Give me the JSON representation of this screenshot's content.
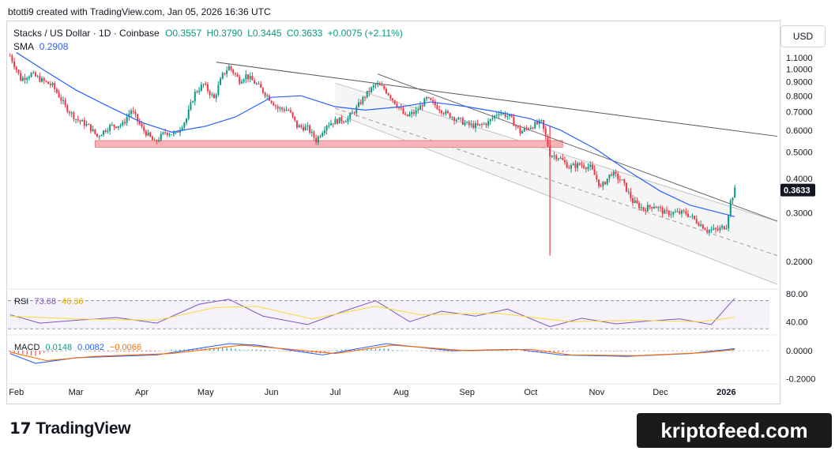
{
  "header": {
    "attribution": "btotti9 created with TradingView.com, Jan 05, 2026 16:36 UTC",
    "symbol": "Stacks / US Dollar · 1D · Coinbase",
    "open": "O0.3557",
    "high": "H0.3790",
    "low": "L0.3445",
    "close": "C0.3633",
    "change": "+0.0075 (+2.11%)",
    "sma_label": "SMA",
    "sma_value": "0.2908",
    "currency": "USD"
  },
  "colors": {
    "up": "#089981",
    "down": "#f23645",
    "sma": "#2962ff",
    "rsi": "#7e57c2",
    "rsi_ma": "#fdd835",
    "macd": "#2962ff",
    "signal": "#ff6d00",
    "support_zone": "#f7b3b8",
    "channel": "#dddddd"
  },
  "chart_data": [
    {
      "type": "candlestick",
      "title": "Stacks / US Dollar · 1D · Coinbase",
      "yscale": "log",
      "ylim": [
        0.165,
        1.2
      ],
      "ytick_labels": [
        "0.2000",
        "0.3000",
        "0.4000",
        "0.5000",
        "0.6000",
        "0.7000",
        "0.8000",
        "0.9000",
        "1.0000",
        "1.1000"
      ],
      "yticks": [
        0.2,
        0.3,
        0.4,
        0.5,
        0.6,
        0.7,
        0.8,
        0.9,
        1.0,
        1.1
      ],
      "xtick_labels": [
        "Feb",
        "Mar",
        "Apr",
        "May",
        "Jun",
        "Jul",
        "Aug",
        "Sep",
        "Oct",
        "Nov",
        "Dec",
        "2026"
      ],
      "xticks": [
        "2025-02-01",
        "2025-03-01",
        "2025-04-01",
        "2025-05-01",
        "2025-06-01",
        "2025-07-01",
        "2025-08-01",
        "2025-09-01",
        "2025-10-01",
        "2025-11-01",
        "2025-12-01",
        "2026-01-01"
      ],
      "xlim": [
        "2025-01-28",
        "2026-01-25"
      ],
      "close_path": [
        {
          "date": "2025-01-29",
          "close": 1.12
        },
        {
          "date": "2025-02-03",
          "close": 0.92
        },
        {
          "date": "2025-02-08",
          "close": 0.96
        },
        {
          "date": "2025-02-13",
          "close": 0.91
        },
        {
          "date": "2025-02-18",
          "close": 0.87
        },
        {
          "date": "2025-02-24",
          "close": 0.73
        },
        {
          "date": "2025-03-01",
          "close": 0.66
        },
        {
          "date": "2025-03-07",
          "close": 0.62
        },
        {
          "date": "2025-03-11",
          "close": 0.57
        },
        {
          "date": "2025-03-17",
          "close": 0.62
        },
        {
          "date": "2025-03-23",
          "close": 0.63
        },
        {
          "date": "2025-03-27",
          "close": 0.71
        },
        {
          "date": "2025-04-01",
          "close": 0.61
        },
        {
          "date": "2025-04-07",
          "close": 0.54
        },
        {
          "date": "2025-04-12",
          "close": 0.59
        },
        {
          "date": "2025-04-17",
          "close": 0.58
        },
        {
          "date": "2025-04-22",
          "close": 0.66
        },
        {
          "date": "2025-04-26",
          "close": 0.82
        },
        {
          "date": "2025-04-30",
          "close": 0.88
        },
        {
          "date": "2025-05-05",
          "close": 0.78
        },
        {
          "date": "2025-05-09",
          "close": 0.95
        },
        {
          "date": "2025-05-12",
          "close": 1.02
        },
        {
          "date": "2025-05-17",
          "close": 0.91
        },
        {
          "date": "2025-05-20",
          "close": 0.95
        },
        {
          "date": "2025-05-25",
          "close": 0.88
        },
        {
          "date": "2025-05-30",
          "close": 0.8
        },
        {
          "date": "2025-06-04",
          "close": 0.72
        },
        {
          "date": "2025-06-09",
          "close": 0.71
        },
        {
          "date": "2025-06-13",
          "close": 0.62
        },
        {
          "date": "2025-06-18",
          "close": 0.61
        },
        {
          "date": "2025-06-22",
          "close": 0.55
        },
        {
          "date": "2025-06-27",
          "close": 0.63
        },
        {
          "date": "2025-07-02",
          "close": 0.65
        },
        {
          "date": "2025-07-07",
          "close": 0.66
        },
        {
          "date": "2025-07-11",
          "close": 0.72
        },
        {
          "date": "2025-07-15",
          "close": 0.8
        },
        {
          "date": "2025-07-20",
          "close": 0.88
        },
        {
          "date": "2025-07-24",
          "close": 0.85
        },
        {
          "date": "2025-07-29",
          "close": 0.76
        },
        {
          "date": "2025-08-03",
          "close": 0.67
        },
        {
          "date": "2025-08-08",
          "close": 0.7
        },
        {
          "date": "2025-08-13",
          "close": 0.78
        },
        {
          "date": "2025-08-17",
          "close": 0.74
        },
        {
          "date": "2025-08-22",
          "close": 0.69
        },
        {
          "date": "2025-08-27",
          "close": 0.66
        },
        {
          "date": "2025-09-01",
          "close": 0.63
        },
        {
          "date": "2025-09-06",
          "close": 0.62
        },
        {
          "date": "2025-09-11",
          "close": 0.64
        },
        {
          "date": "2025-09-16",
          "close": 0.7
        },
        {
          "date": "2025-09-21",
          "close": 0.67
        },
        {
          "date": "2025-09-26",
          "close": 0.59
        },
        {
          "date": "2025-10-01",
          "close": 0.62
        },
        {
          "date": "2025-10-06",
          "close": 0.64
        },
        {
          "date": "2025-10-10",
          "close": 0.49
        },
        {
          "date": "2025-10-14",
          "close": 0.48
        },
        {
          "date": "2025-10-19",
          "close": 0.44
        },
        {
          "date": "2025-10-24",
          "close": 0.45
        },
        {
          "date": "2025-10-29",
          "close": 0.44
        },
        {
          "date": "2025-11-03",
          "close": 0.37
        },
        {
          "date": "2025-11-08",
          "close": 0.42
        },
        {
          "date": "2025-11-13",
          "close": 0.39
        },
        {
          "date": "2025-11-18",
          "close": 0.33
        },
        {
          "date": "2025-11-23",
          "close": 0.31
        },
        {
          "date": "2025-11-28",
          "close": 0.32
        },
        {
          "date": "2025-12-03",
          "close": 0.3
        },
        {
          "date": "2025-12-08",
          "close": 0.3
        },
        {
          "date": "2025-12-13",
          "close": 0.3
        },
        {
          "date": "2025-12-18",
          "close": 0.28
        },
        {
          "date": "2025-12-23",
          "close": 0.26
        },
        {
          "date": "2025-12-28",
          "close": 0.26
        },
        {
          "date": "2026-01-01",
          "close": 0.27
        },
        {
          "date": "2026-01-03",
          "close": 0.33
        },
        {
          "date": "2026-01-05",
          "close": 0.3633
        }
      ],
      "sma": [
        {
          "date": "2025-02-01",
          "value": 1.15
        },
        {
          "date": "2025-02-15",
          "value": 0.98
        },
        {
          "date": "2025-03-01",
          "value": 0.84
        },
        {
          "date": "2025-03-15",
          "value": 0.74
        },
        {
          "date": "2025-04-01",
          "value": 0.64
        },
        {
          "date": "2025-04-15",
          "value": 0.59
        },
        {
          "date": "2025-05-01",
          "value": 0.62
        },
        {
          "date": "2025-05-15",
          "value": 0.67
        },
        {
          "date": "2025-06-01",
          "value": 0.79
        },
        {
          "date": "2025-06-15",
          "value": 0.8
        },
        {
          "date": "2025-07-01",
          "value": 0.73
        },
        {
          "date": "2025-07-15",
          "value": 0.71
        },
        {
          "date": "2025-08-01",
          "value": 0.73
        },
        {
          "date": "2025-08-15",
          "value": 0.76
        },
        {
          "date": "2025-09-01",
          "value": 0.73
        },
        {
          "date": "2025-09-15",
          "value": 0.7
        },
        {
          "date": "2025-10-01",
          "value": 0.66
        },
        {
          "date": "2025-10-15",
          "value": 0.6
        },
        {
          "date": "2025-11-01",
          "value": 0.51
        },
        {
          "date": "2025-11-15",
          "value": 0.43
        },
        {
          "date": "2025-12-01",
          "value": 0.36
        },
        {
          "date": "2025-12-15",
          "value": 0.32
        },
        {
          "date": "2026-01-05",
          "value": 0.2908
        }
      ],
      "support_zone": {
        "from": "2025-03-10",
        "to": "2025-10-16",
        "low": 0.52,
        "high": 0.55
      },
      "trendline": {
        "from": {
          "date": "2025-05-06",
          "value": 1.06
        },
        "to": {
          "date": "2026-01-25",
          "value": 0.57
        }
      },
      "trendline_inner": {
        "from": {
          "date": "2025-07-21",
          "value": 0.96
        },
        "to": {
          "date": "2026-01-25",
          "value": 0.28
        }
      },
      "channel": {
        "upper": {
          "from": {
            "date": "2025-07-01",
            "value": 0.89
          },
          "to": {
            "date": "2026-01-25",
            "value": 0.28
          }
        },
        "mid": {
          "from": {
            "date": "2025-07-01",
            "value": 0.72
          },
          "to": {
            "date": "2026-01-25",
            "value": 0.21
          }
        },
        "lower": {
          "from": {
            "date": "2025-07-01",
            "value": 0.69
          },
          "to": {
            "date": "2026-01-25",
            "value": 0.165
          }
        }
      },
      "last_price_label": "0.3633",
      "last_price": 0.3633,
      "legend": "top-left",
      "grid": false
    },
    {
      "type": "line",
      "title": "RSI",
      "ylim": [
        28,
        82
      ],
      "ytick_labels": [
        "80.00",
        "40.00"
      ],
      "yticks": [
        80,
        40
      ],
      "band": [
        30,
        70
      ],
      "series": [
        {
          "name": "RSI",
          "value": "73.68",
          "points": [
            [
              "2025-01-29",
              50
            ],
            [
              "2025-02-12",
              38
            ],
            [
              "2025-03-01",
              42
            ],
            [
              "2025-03-20",
              46
            ],
            [
              "2025-04-08",
              38
            ],
            [
              "2025-04-28",
              65
            ],
            [
              "2025-05-12",
              72
            ],
            [
              "2025-05-28",
              48
            ],
            [
              "2025-06-18",
              36
            ],
            [
              "2025-07-05",
              55
            ],
            [
              "2025-07-20",
              70
            ],
            [
              "2025-08-05",
              40
            ],
            [
              "2025-08-20",
              55
            ],
            [
              "2025-09-05",
              48
            ],
            [
              "2025-09-20",
              58
            ],
            [
              "2025-10-10",
              33
            ],
            [
              "2025-10-25",
              45
            ],
            [
              "2025-11-10",
              37
            ],
            [
              "2025-11-25",
              41
            ],
            [
              "2025-12-10",
              44
            ],
            [
              "2025-12-25",
              36
            ],
            [
              "2026-01-05",
              73.68
            ]
          ]
        },
        {
          "name": "RSI MA",
          "value": "46.36",
          "points": [
            [
              "2025-01-29",
              48
            ],
            [
              "2025-03-01",
              44
            ],
            [
              "2025-04-08",
              42
            ],
            [
              "2025-05-05",
              60
            ],
            [
              "2025-05-25",
              62
            ],
            [
              "2025-06-20",
              44
            ],
            [
              "2025-07-20",
              62
            ],
            [
              "2025-08-10",
              50
            ],
            [
              "2025-09-15",
              52
            ],
            [
              "2025-10-20",
              40
            ],
            [
              "2025-11-20",
              42
            ],
            [
              "2025-12-20",
              40
            ],
            [
              "2026-01-05",
              46.36
            ]
          ]
        }
      ]
    },
    {
      "type": "line",
      "title": "MACD",
      "ylim": [
        -0.23,
        0.09
      ],
      "ytick_labels": [
        "0.0000",
        "-0.2000"
      ],
      "yticks": [
        0.0,
        -0.2
      ],
      "series": [
        {
          "name": "MACD",
          "value": "0.0148",
          "points": [
            [
              "2025-01-29",
              -0.02
            ],
            [
              "2025-02-10",
              -0.09
            ],
            [
              "2025-03-01",
              -0.05
            ],
            [
              "2025-04-08",
              -0.03
            ],
            [
              "2025-05-12",
              0.05
            ],
            [
              "2025-05-25",
              0.04
            ],
            [
              "2025-06-25",
              -0.03
            ],
            [
              "2025-07-25",
              0.05
            ],
            [
              "2025-08-25",
              0.0
            ],
            [
              "2025-09-25",
              0.01
            ],
            [
              "2025-10-15",
              -0.03
            ],
            [
              "2025-11-15",
              -0.04
            ],
            [
              "2025-12-15",
              -0.02
            ],
            [
              "2026-01-05",
              0.0148
            ]
          ]
        },
        {
          "name": "Signal",
          "value": "0.0082",
          "points": [
            [
              "2025-01-29",
              -0.01
            ],
            [
              "2025-02-15",
              -0.07
            ],
            [
              "2025-03-10",
              -0.04
            ],
            [
              "2025-04-15",
              -0.02
            ],
            [
              "2025-05-18",
              0.04
            ],
            [
              "2025-06-10",
              0.01
            ],
            [
              "2025-07-01",
              -0.02
            ],
            [
              "2025-07-28",
              0.04
            ],
            [
              "2025-09-01",
              0.0
            ],
            [
              "2025-10-01",
              0.01
            ],
            [
              "2025-10-20",
              -0.03
            ],
            [
              "2025-11-20",
              -0.035
            ],
            [
              "2025-12-20",
              -0.015
            ],
            [
              "2026-01-05",
              0.0082
            ]
          ]
        },
        {
          "name": "Histogram",
          "value": "0.0066"
        }
      ]
    }
  ],
  "footer": {
    "brand": "TradingView",
    "watermark": "kriptofeed.com"
  }
}
